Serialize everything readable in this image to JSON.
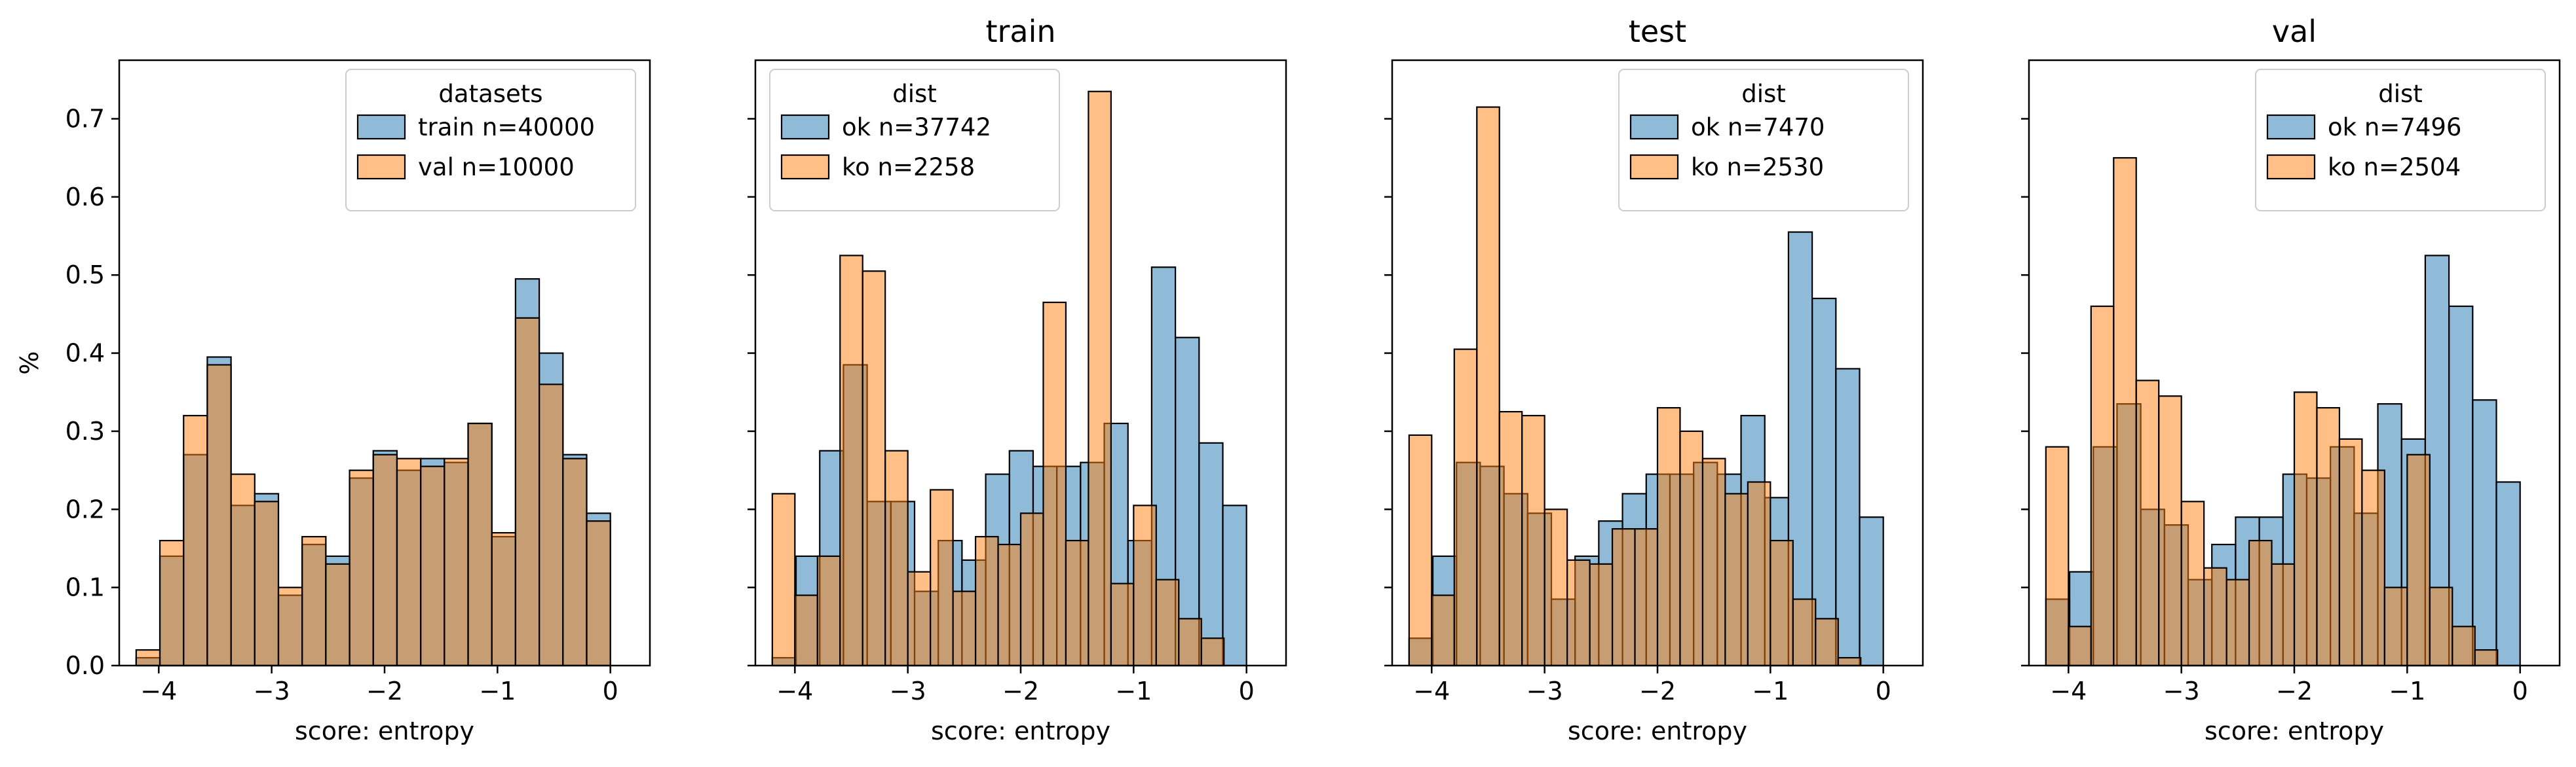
{
  "figure": {
    "colors": {
      "series_1": "#1f77b4",
      "series_2": "#ff7f0e",
      "edge": "#000000"
    },
    "shared_ylabel": "%"
  },
  "chart_data": [
    {
      "type": "bar",
      "histogram": true,
      "title": "",
      "xlabel": "score: entropy",
      "ylabel": "%",
      "xlim": [
        -4.35,
        0.35
      ],
      "ylim": [
        0,
        0.775
      ],
      "xticks": [
        -4,
        -3,
        -2,
        -1,
        0
      ],
      "xtick_labels": [
        "−4",
        "−3",
        "−2",
        "−1",
        "0"
      ],
      "yticks": [
        0.0,
        0.1,
        0.2,
        0.3,
        0.4,
        0.5,
        0.6,
        0.7
      ],
      "ytick_labels": [
        "0.0",
        "0.1",
        "0.2",
        "0.3",
        "0.4",
        "0.5",
        "0.6",
        "0.7"
      ],
      "grid": false,
      "legend": {
        "title": "datasets",
        "position": "top-right"
      },
      "series": [
        {
          "name": "train n=40000",
          "color": "#1f77b4",
          "bin_edges": [
            -4.2,
            -3.99,
            -3.78,
            -3.57,
            -3.36,
            -3.15,
            -2.94,
            -2.73,
            -2.52,
            -2.31,
            -2.1,
            -1.89,
            -1.68,
            -1.47,
            -1.26,
            -1.05,
            -0.84,
            -0.63,
            -0.42,
            -0.21,
            0.0
          ],
          "values": [
            0.01,
            0.14,
            0.27,
            0.395,
            0.205,
            0.22,
            0.09,
            0.155,
            0.14,
            0.24,
            0.275,
            0.25,
            0.265,
            0.26,
            0.31,
            0.165,
            0.495,
            0.4,
            0.27,
            0.195
          ]
        },
        {
          "name": "val n=10000",
          "color": "#ff7f0e",
          "bin_edges": [
            -4.2,
            -3.99,
            -3.78,
            -3.57,
            -3.36,
            -3.15,
            -2.94,
            -2.73,
            -2.52,
            -2.31,
            -2.1,
            -1.89,
            -1.68,
            -1.47,
            -1.26,
            -1.05,
            -0.84,
            -0.63,
            -0.42,
            -0.21,
            0.0
          ],
          "values": [
            0.02,
            0.16,
            0.32,
            0.385,
            0.245,
            0.21,
            0.1,
            0.165,
            0.13,
            0.25,
            0.27,
            0.265,
            0.255,
            0.265,
            0.31,
            0.17,
            0.445,
            0.36,
            0.265,
            0.185
          ]
        }
      ]
    },
    {
      "type": "bar",
      "histogram": true,
      "title": "train",
      "xlabel": "score: entropy",
      "ylabel": "",
      "xlim": [
        -4.35,
        0.35
      ],
      "ylim": [
        0,
        0.775
      ],
      "xticks": [
        -4,
        -3,
        -2,
        -1,
        0
      ],
      "xtick_labels": [
        "−4",
        "−3",
        "−2",
        "−1",
        "0"
      ],
      "grid": false,
      "legend": {
        "title": "dist",
        "position": "top-left"
      },
      "series": [
        {
          "name": "ok n=37742",
          "color": "#1f77b4",
          "bin_edges": [
            -4.2,
            -3.99,
            -3.78,
            -3.57,
            -3.36,
            -3.15,
            -2.94,
            -2.73,
            -2.52,
            -2.31,
            -2.1,
            -1.89,
            -1.68,
            -1.47,
            -1.26,
            -1.05,
            -0.84,
            -0.63,
            -0.42,
            -0.21,
            0.0
          ],
          "values": [
            0.01,
            0.14,
            0.275,
            0.385,
            0.21,
            0.21,
            0.095,
            0.16,
            0.135,
            0.245,
            0.275,
            0.255,
            0.255,
            0.26,
            0.31,
            0.16,
            0.51,
            0.42,
            0.285,
            0.205
          ]
        },
        {
          "name": "ko n=2258",
          "color": "#ff7f0e",
          "bin_edges": [
            -4.2,
            -4.0,
            -3.8,
            -3.6,
            -3.4,
            -3.2,
            -3.0,
            -2.8,
            -2.6,
            -2.4,
            -2.2,
            -2.0,
            -1.8,
            -1.6,
            -1.4,
            -1.2,
            -1.0,
            -0.8,
            -0.6,
            -0.4,
            -0.2
          ],
          "values": [
            0.22,
            0.09,
            0.14,
            0.525,
            0.505,
            0.275,
            0.12,
            0.225,
            0.095,
            0.165,
            0.155,
            0.195,
            0.465,
            0.16,
            0.735,
            0.105,
            0.205,
            0.11,
            0.06,
            0.035
          ]
        }
      ]
    },
    {
      "type": "bar",
      "histogram": true,
      "title": "test",
      "xlabel": "score: entropy",
      "ylabel": "",
      "xlim": [
        -4.35,
        0.35
      ],
      "ylim": [
        0,
        0.775
      ],
      "xticks": [
        -4,
        -3,
        -2,
        -1,
        0
      ],
      "xtick_labels": [
        "−4",
        "−3",
        "−2",
        "−1",
        "0"
      ],
      "grid": false,
      "legend": {
        "title": "dist",
        "position": "top-right"
      },
      "series": [
        {
          "name": "ok n=7470",
          "color": "#1f77b4",
          "bin_edges": [
            -4.2,
            -3.99,
            -3.78,
            -3.57,
            -3.36,
            -3.15,
            -2.94,
            -2.73,
            -2.52,
            -2.31,
            -2.1,
            -1.89,
            -1.68,
            -1.47,
            -1.26,
            -1.05,
            -0.84,
            -0.63,
            -0.42,
            -0.21,
            0.0
          ],
          "values": [
            0.035,
            0.14,
            0.26,
            0.255,
            0.22,
            0.195,
            0.085,
            0.14,
            0.185,
            0.22,
            0.245,
            0.245,
            0.26,
            0.245,
            0.32,
            0.215,
            0.555,
            0.47,
            0.38,
            0.19
          ]
        },
        {
          "name": "ko n=2530",
          "color": "#ff7f0e",
          "bin_edges": [
            -4.2,
            -4.0,
            -3.8,
            -3.6,
            -3.4,
            -3.2,
            -3.0,
            -2.8,
            -2.6,
            -2.4,
            -2.2,
            -2.0,
            -1.8,
            -1.6,
            -1.4,
            -1.2,
            -1.0,
            -0.8,
            -0.6,
            -0.4,
            -0.2
          ],
          "values": [
            0.295,
            0.09,
            0.405,
            0.715,
            0.325,
            0.32,
            0.2,
            0.135,
            0.13,
            0.175,
            0.175,
            0.33,
            0.3,
            0.265,
            0.22,
            0.235,
            0.16,
            0.085,
            0.06,
            0.01
          ]
        }
      ]
    },
    {
      "type": "bar",
      "histogram": true,
      "title": "val",
      "xlabel": "score: entropy",
      "ylabel": "",
      "xlim": [
        -4.35,
        0.35
      ],
      "ylim": [
        0,
        0.775
      ],
      "xticks": [
        -4,
        -3,
        -2,
        -1,
        0
      ],
      "xtick_labels": [
        "−4",
        "−3",
        "−2",
        "−1",
        "0"
      ],
      "grid": false,
      "legend": {
        "title": "dist",
        "position": "top-right"
      },
      "series": [
        {
          "name": "ok n=7496",
          "color": "#1f77b4",
          "bin_edges": [
            -4.2,
            -3.99,
            -3.78,
            -3.57,
            -3.36,
            -3.15,
            -2.94,
            -2.73,
            -2.52,
            -2.31,
            -2.1,
            -1.89,
            -1.68,
            -1.47,
            -1.26,
            -1.05,
            -0.84,
            -0.63,
            -0.42,
            -0.21,
            0.0
          ],
          "values": [
            0.085,
            0.12,
            0.28,
            0.335,
            0.2,
            0.18,
            0.11,
            0.155,
            0.19,
            0.19,
            0.245,
            0.24,
            0.28,
            0.195,
            0.335,
            0.29,
            0.525,
            0.46,
            0.34,
            0.235
          ]
        },
        {
          "name": "ko n=2504",
          "color": "#ff7f0e",
          "bin_edges": [
            -4.2,
            -4.0,
            -3.8,
            -3.6,
            -3.4,
            -3.2,
            -3.0,
            -2.8,
            -2.6,
            -2.4,
            -2.2,
            -2.0,
            -1.8,
            -1.6,
            -1.4,
            -1.2,
            -1.0,
            -0.8,
            -0.6,
            -0.4,
            -0.2
          ],
          "values": [
            0.28,
            0.05,
            0.46,
            0.65,
            0.365,
            0.345,
            0.21,
            0.125,
            0.11,
            0.16,
            0.13,
            0.35,
            0.33,
            0.29,
            0.25,
            0.1,
            0.27,
            0.1,
            0.05,
            0.02
          ]
        }
      ]
    }
  ]
}
